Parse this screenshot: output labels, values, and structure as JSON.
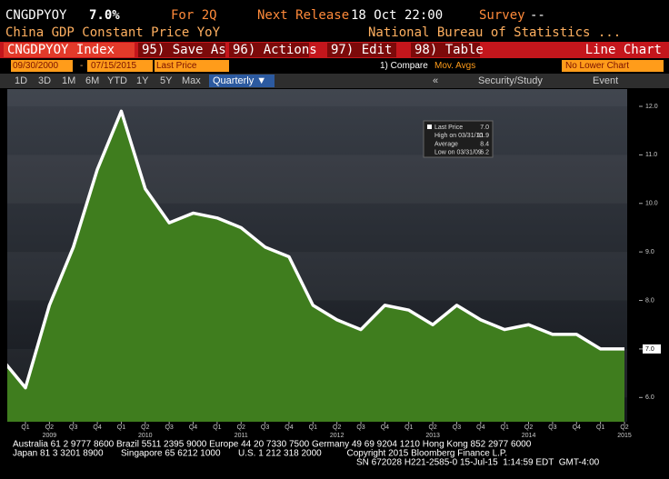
{
  "header": {
    "ticker": "CNGDPYOY",
    "last": "7.0%",
    "period": "For 2Q",
    "next_release_label": "Next Release",
    "next_release": "18 Oct 22:00",
    "survey_label": "Survey",
    "survey": "--",
    "description": "China GDP Constant Price YoY",
    "source": "National Bureau of Statistics ..."
  },
  "toolbar": {
    "security": "CNGDPYOY Index",
    "buttons": [
      "95) Save As...",
      "96) Actions",
      "97) Edit",
      "98) Table"
    ],
    "chart_type": "Line Chart"
  },
  "range": {
    "start": "09/30/2000",
    "separator": "-",
    "end": "07/15/2015",
    "field": "Last Price",
    "compare": "1) Compare",
    "studies": "Mov. Avgs",
    "lower_chart": "No Lower Chart"
  },
  "periods": [
    "1D",
    "3D",
    "1M",
    "6M",
    "YTD",
    "1Y",
    "5Y",
    "Max"
  ],
  "frequency": "Quarterly ▼",
  "tools": [
    "«",
    "Security/Study",
    "Event"
  ],
  "chart_data": {
    "type": "area",
    "categories": [
      null,
      "Q1",
      "Q2",
      "Q3",
      "Q4",
      "Q1",
      "Q2",
      "Q3",
      "Q4",
      "Q1",
      "Q2",
      "Q3",
      "Q4",
      "Q1",
      "Q2",
      "Q3",
      "Q4",
      "Q1",
      "Q2",
      "Q3",
      "Q4",
      "Q1",
      "Q2",
      "Q3",
      "Q4",
      "Q1",
      "Q2"
    ],
    "year_labels": [
      null,
      null,
      "2009",
      null,
      null,
      null,
      "2010",
      null,
      null,
      null,
      "2011",
      null,
      null,
      null,
      "2012",
      null,
      null,
      null,
      "2013",
      null,
      null,
      null,
      "2014",
      null,
      null,
      null,
      "2015"
    ],
    "values": [
      6.8,
      6.2,
      7.9,
      9.1,
      10.7,
      11.9,
      10.3,
      9.6,
      9.8,
      9.7,
      9.5,
      9.1,
      8.9,
      7.9,
      7.6,
      7.4,
      7.9,
      7.8,
      7.5,
      7.9,
      7.6,
      7.4,
      7.5,
      7.3,
      7.3,
      7.0,
      7.0
    ],
    "color": "#3f7d1e",
    "line_color": "#ffffff",
    "ylim": [
      5.5,
      12.3
    ],
    "yticks": [
      {
        "value": 6,
        "label": "6.0"
      },
      {
        "value": 7,
        "label": "7.0"
      },
      {
        "value": 8,
        "label": "8.0"
      },
      {
        "value": 9,
        "label": "9.0"
      },
      {
        "value": 10,
        "label": "10.0"
      },
      {
        "value": 11,
        "label": "11.0"
      },
      {
        "value": 12,
        "label": "12.0"
      }
    ],
    "last_value": {
      "value": 7,
      "label": "7.0"
    },
    "legend": [
      [
        "Last Price",
        "7.0"
      ],
      [
        "High on 03/31/10",
        "11.9"
      ],
      [
        "Average",
        "8.4"
      ],
      [
        "Low on 03/31/09",
        "6.2"
      ]
    ]
  },
  "footer": [
    "Australia 61 2 9777 8600 Brazil 5511 2395 9000 Europe 44 20 7330 7500 Germany 49 69 9204 1210 Hong Kong 852 2977 6000",
    "Japan 81 3 3201 8900       Singapore 65 6212 1000       U.S. 1 212 318 2000          Copyright 2015 Bloomberg Finance L.P.",
    "SN 672028 H221-2585-0 15-Jul-15  1:14:59 EDT  GMT-4:00"
  ]
}
